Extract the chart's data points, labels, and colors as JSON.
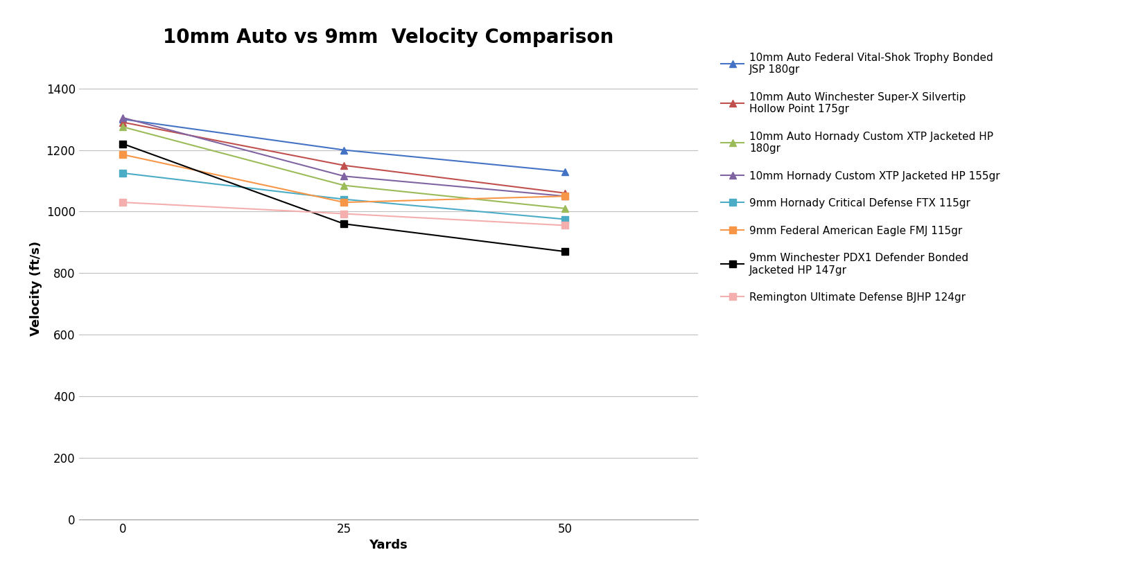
{
  "title": "10mm Auto vs 9mm  Velocity Comparison",
  "xlabel": "Yards",
  "ylabel": "Velocity (ft/s)",
  "x_values": [
    0,
    25,
    50
  ],
  "x_ticks": [
    0,
    25,
    50
  ],
  "ylim": [
    0,
    1500
  ],
  "yticks": [
    0,
    200,
    400,
    600,
    800,
    1000,
    1200,
    1400
  ],
  "series": [
    {
      "label": "10mm Auto Federal Vital-Shok Trophy Bonded\nJSP 180gr",
      "color": "#4472C4",
      "marker": "^",
      "values": [
        1300,
        1200,
        1130
      ]
    },
    {
      "label": "10mm Auto Winchester Super-X Silvertip\nHollow Point 175gr",
      "color": "#C0504D",
      "marker": "^",
      "values": [
        1290,
        1150,
        1060
      ]
    },
    {
      "label": "10mm Auto Hornady Custom XTP Jacketed HP\n180gr",
      "color": "#9BBB59",
      "marker": "^",
      "values": [
        1275,
        1085,
        1010
      ]
    },
    {
      "label": "10mm Hornady Custom XTP Jacketed HP 155gr",
      "color": "#8064A2",
      "marker": "^",
      "values": [
        1305,
        1115,
        1050
      ]
    },
    {
      "label": "9mm Hornady Critical Defense FTX 115gr",
      "color": "#4BACC6",
      "marker": "s",
      "values": [
        1125,
        1040,
        975
      ]
    },
    {
      "label": "9mm Federal American Eagle FMJ 115gr",
      "color": "#F79646",
      "marker": "s",
      "values": [
        1185,
        1030,
        1050
      ]
    },
    {
      "label": "9mm Winchester PDX1 Defender Bonded\nJacketed HP 147gr",
      "color": "#000000",
      "marker": "s",
      "values": [
        1220,
        960,
        870
      ]
    },
    {
      "label": "Remington Ultimate Defense BJHP 124gr",
      "color": "#F4AEAE",
      "marker": "s",
      "values": [
        1030,
        993,
        955
      ]
    }
  ],
  "background_color": "#FFFFFF",
  "grid_color": "#BEBEBE",
  "title_fontsize": 20,
  "axis_label_fontsize": 13,
  "tick_fontsize": 12,
  "legend_fontsize": 11
}
